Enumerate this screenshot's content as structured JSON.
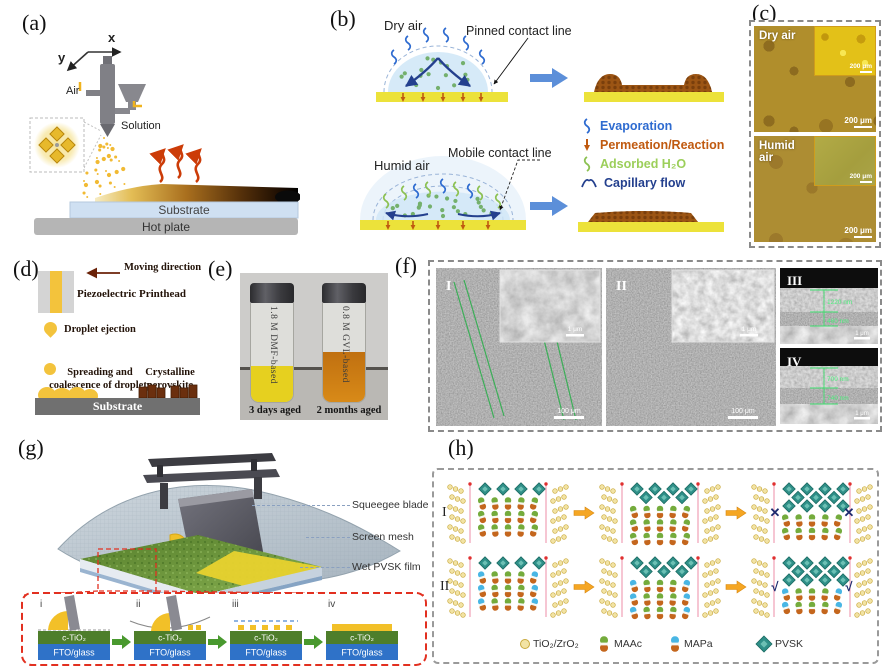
{
  "panel_a": {
    "tag": "(a)",
    "axis_x": "x",
    "axis_y": "y",
    "air": "Air",
    "solution": "Solution",
    "substrate": "Substrate",
    "hot_plate": "Hot  plate"
  },
  "panel_b": {
    "tag": "(b)",
    "dry_title": "Dry air",
    "pinned": "Pinned contact line",
    "humid_title": "Humid air",
    "mobile": "Mobile contact line",
    "legend": {
      "evaporation": "Evaporation",
      "permeation": "Permeation/Reaction",
      "adsorbed": "Adsorbed H₂O",
      "capillary": "Capillary flow"
    }
  },
  "panel_c": {
    "tag": "(c)",
    "dry_label": "Dry air",
    "humid_label": "Humid air",
    "scale": "200 μm"
  },
  "panel_d": {
    "tag": "(d)",
    "moving": "Moving direction",
    "printhead": "Piezoelectric Printhead",
    "droplet": "Droplet ejection",
    "spreading_line1": "Spreading and",
    "spreading_line2": "coalescence  of droplets",
    "crystalline_line1": "Crystalline",
    "crystalline_line2": "perovskite",
    "substrate": "Substrate"
  },
  "panel_e": {
    "tag": "(e)",
    "left_vial_text": "1.8 M DMF-based",
    "left_caption": "3 days aged",
    "right_vial_text": "0.8 M GVL-based",
    "right_caption": "2 months aged"
  },
  "panel_f": {
    "tag": "(f)",
    "label_i": "I",
    "label_ii": "II",
    "label_iii": "III",
    "label_iv": "IV",
    "scale_main": "100 μm",
    "scale_inset": "1 μm",
    "iii_thickness_top": "1220 nm",
    "iii_thickness_bottom": "460 nm",
    "iv_thickness_top": "700 nm",
    "iv_thickness_bottom": "740 nm"
  },
  "panel_g": {
    "tag": "(g)",
    "squeegee": "Squeegee blade",
    "mesh": "Screen mesh",
    "wet_film": "Wet PVSK film",
    "stages": [
      "i",
      "ii",
      "iii",
      "iv"
    ],
    "layer_top": "c-TiO₂",
    "layer_bottom": "FTO/glass"
  },
  "panel_h": {
    "tag": "(h)",
    "row_i": "I",
    "row_ii": "II",
    "mark_block": "✕",
    "mark_pass": "√",
    "legend": {
      "tio2": "TiO₂/ZrO₂",
      "maac": "MAAc",
      "mapa": "MAPa",
      "pvsk": "PVSK"
    }
  }
}
